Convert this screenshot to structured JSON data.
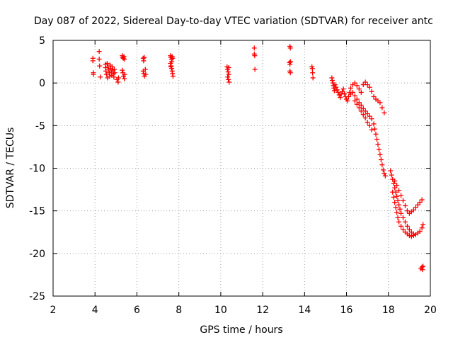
{
  "chart_data": {
    "type": "scatter",
    "title": "Day 087 of 2022, Sidereal Day-to-day VTEC variation (SDTVAR) for receiver antc",
    "xlabel": "GPS time / hours",
    "ylabel": "SDTVAR / TECUs",
    "xlim": [
      2,
      20
    ],
    "ylim": [
      -25,
      5
    ],
    "xticks": [
      "2",
      "4",
      "6",
      "8",
      "10",
      "12",
      "14",
      "16",
      "18",
      "20"
    ],
    "yticks": [
      "5",
      "0",
      "-5",
      "-10",
      "-15",
      "-20",
      "-25"
    ],
    "grid": true,
    "marker": "+",
    "color": "#ff0000",
    "series": [
      {
        "name": "SDTVAR",
        "points": [
          [
            3.9,
            2.9
          ],
          [
            3.9,
            2.6
          ],
          [
            3.92,
            1.2
          ],
          [
            3.92,
            1.0
          ],
          [
            4.2,
            3.7
          ],
          [
            4.2,
            2.8
          ],
          [
            4.22,
            2.0
          ],
          [
            4.25,
            0.7
          ],
          [
            4.5,
            2.2
          ],
          [
            4.5,
            1.8
          ],
          [
            4.52,
            1.4
          ],
          [
            4.55,
            1.0
          ],
          [
            4.58,
            2.3
          ],
          [
            4.6,
            0.6
          ],
          [
            4.62,
            1.9
          ],
          [
            4.65,
            1.6
          ],
          [
            4.68,
            1.2
          ],
          [
            4.7,
            0.8
          ],
          [
            4.72,
            2.1
          ],
          [
            4.75,
            1.7
          ],
          [
            4.78,
            1.3
          ],
          [
            4.8,
            0.9
          ],
          [
            4.82,
            1.9
          ],
          [
            4.85,
            1.5
          ],
          [
            4.88,
            1.1
          ],
          [
            4.9,
            0.7
          ],
          [
            4.92,
            1.6
          ],
          [
            4.95,
            1.2
          ],
          [
            5.05,
            0.4
          ],
          [
            5.1,
            0.1
          ],
          [
            5.12,
            0.6
          ],
          [
            5.3,
            3.2
          ],
          [
            5.32,
            3.0
          ],
          [
            5.35,
            2.9
          ],
          [
            5.38,
            3.1
          ],
          [
            5.4,
            2.8
          ],
          [
            5.3,
            1.5
          ],
          [
            5.33,
            1.2
          ],
          [
            5.36,
            0.8
          ],
          [
            5.4,
            0.5
          ],
          [
            5.42,
            1.0
          ],
          [
            6.3,
            2.9
          ],
          [
            6.32,
            2.6
          ],
          [
            6.35,
            3.0
          ],
          [
            6.3,
            1.4
          ],
          [
            6.33,
            1.1
          ],
          [
            6.36,
            0.8
          ],
          [
            6.4,
            1.6
          ],
          [
            6.42,
            1.0
          ],
          [
            7.6,
            3.2
          ],
          [
            7.62,
            3.0
          ],
          [
            7.65,
            2.8
          ],
          [
            7.68,
            3.1
          ],
          [
            7.7,
            2.9
          ],
          [
            7.6,
            2.3
          ],
          [
            7.63,
            2.0
          ],
          [
            7.66,
            1.7
          ],
          [
            7.68,
            1.4
          ],
          [
            7.7,
            1.1
          ],
          [
            7.72,
            0.8
          ],
          [
            7.62,
            1.9
          ],
          [
            7.66,
            2.5
          ],
          [
            10.3,
            1.9
          ],
          [
            10.32,
            1.6
          ],
          [
            10.35,
            1.3
          ],
          [
            10.38,
            1.0
          ],
          [
            10.33,
            0.7
          ],
          [
            10.36,
            0.4
          ],
          [
            10.4,
            0.1
          ],
          [
            10.38,
            1.8
          ],
          [
            11.6,
            4.1
          ],
          [
            11.6,
            3.4
          ],
          [
            11.62,
            3.2
          ],
          [
            11.63,
            1.6
          ],
          [
            13.3,
            4.3
          ],
          [
            13.32,
            4.1
          ],
          [
            13.28,
            2.4
          ],
          [
            13.3,
            2.2
          ],
          [
            13.33,
            2.5
          ],
          [
            13.3,
            1.4
          ],
          [
            13.32,
            1.2
          ],
          [
            14.35,
            1.9
          ],
          [
            14.37,
            1.7
          ],
          [
            14.38,
            1.2
          ],
          [
            14.4,
            0.6
          ],
          [
            15.3,
            0.6
          ],
          [
            15.32,
            0.3
          ],
          [
            15.35,
            0.0
          ],
          [
            15.38,
            -0.3
          ],
          [
            15.4,
            -0.6
          ],
          [
            15.42,
            -0.9
          ],
          [
            15.45,
            -0.2
          ],
          [
            15.5,
            -0.5
          ],
          [
            15.55,
            -0.8
          ],
          [
            15.6,
            -1.1
          ],
          [
            15.65,
            -1.4
          ],
          [
            15.7,
            -1.7
          ],
          [
            15.75,
            -1.3
          ],
          [
            15.8,
            -1.0
          ],
          [
            15.85,
            -0.7
          ],
          [
            15.9,
            -1.2
          ],
          [
            15.95,
            -1.6
          ],
          [
            16.0,
            -1.9
          ],
          [
            16.05,
            -2.1
          ],
          [
            16.1,
            -1.6
          ],
          [
            16.15,
            -1.1
          ],
          [
            16.2,
            -0.6
          ],
          [
            16.3,
            -0.2
          ],
          [
            16.4,
            0.0
          ],
          [
            16.5,
            -0.3
          ],
          [
            16.6,
            -0.7
          ],
          [
            16.7,
            -1.1
          ],
          [
            16.8,
            -0.2
          ],
          [
            16.9,
            0.1
          ],
          [
            17.0,
            -0.2
          ],
          [
            17.1,
            -0.5
          ],
          [
            17.2,
            -1.0
          ],
          [
            17.3,
            -1.6
          ],
          [
            17.4,
            -1.9
          ],
          [
            17.5,
            -2.1
          ],
          [
            17.6,
            -2.3
          ],
          [
            17.7,
            -2.9
          ],
          [
            17.8,
            -3.5
          ],
          [
            16.2,
            -1.3
          ],
          [
            16.3,
            -1.1
          ],
          [
            16.4,
            -1.5
          ],
          [
            16.5,
            -1.9
          ],
          [
            16.6,
            -2.3
          ],
          [
            16.7,
            -2.6
          ],
          [
            16.8,
            -3.0
          ],
          [
            16.9,
            -3.3
          ],
          [
            17.0,
            -3.6
          ],
          [
            17.1,
            -3.9
          ],
          [
            17.2,
            -4.2
          ],
          [
            17.3,
            -4.8
          ],
          [
            17.35,
            -5.4
          ],
          [
            17.4,
            -6.0
          ],
          [
            17.45,
            -6.6
          ],
          [
            17.5,
            -7.2
          ],
          [
            17.55,
            -7.8
          ],
          [
            17.6,
            -8.4
          ],
          [
            17.65,
            -9.0
          ],
          [
            17.7,
            -9.6
          ],
          [
            17.75,
            -10.2
          ],
          [
            17.8,
            -10.6
          ],
          [
            17.85,
            -10.9
          ],
          [
            16.4,
            -2.1
          ],
          [
            16.5,
            -2.5
          ],
          [
            16.6,
            -2.9
          ],
          [
            16.7,
            -3.3
          ],
          [
            16.8,
            -3.7
          ],
          [
            16.9,
            -4.1
          ],
          [
            17.0,
            -4.6
          ],
          [
            17.1,
            -5.0
          ],
          [
            17.2,
            -5.5
          ],
          [
            18.1,
            -10.3
          ],
          [
            18.15,
            -10.8
          ],
          [
            18.2,
            -11.3
          ],
          [
            18.25,
            -11.8
          ],
          [
            18.3,
            -12.3
          ],
          [
            18.35,
            -12.8
          ],
          [
            18.4,
            -13.3
          ],
          [
            18.45,
            -13.8
          ],
          [
            18.5,
            -14.3
          ],
          [
            18.55,
            -14.8
          ],
          [
            18.6,
            -15.3
          ],
          [
            18.7,
            -15.8
          ],
          [
            18.8,
            -16.3
          ],
          [
            18.9,
            -16.8
          ],
          [
            19.0,
            -17.2
          ],
          [
            19.1,
            -17.5
          ],
          [
            19.2,
            -17.7
          ],
          [
            19.3,
            -17.8
          ],
          [
            19.4,
            -17.6
          ],
          [
            19.5,
            -17.4
          ],
          [
            19.6,
            -17.0
          ],
          [
            19.65,
            -16.6
          ],
          [
            18.2,
            -12.8
          ],
          [
            18.25,
            -13.4
          ],
          [
            18.3,
            -14.0
          ],
          [
            18.35,
            -14.6
          ],
          [
            18.4,
            -15.2
          ],
          [
            18.45,
            -15.8
          ],
          [
            18.5,
            -16.3
          ],
          [
            18.6,
            -16.8
          ],
          [
            18.7,
            -17.2
          ],
          [
            18.8,
            -17.5
          ],
          [
            18.9,
            -17.7
          ],
          [
            19.0,
            -17.9
          ],
          [
            19.1,
            -18.0
          ],
          [
            19.2,
            -17.9
          ],
          [
            18.3,
            -11.5
          ],
          [
            18.4,
            -12.0
          ],
          [
            18.5,
            -12.6
          ],
          [
            18.6,
            -13.2
          ],
          [
            18.7,
            -13.8
          ],
          [
            18.8,
            -14.4
          ],
          [
            18.9,
            -15.0
          ],
          [
            19.0,
            -15.3
          ],
          [
            19.1,
            -15.1
          ],
          [
            19.2,
            -14.9
          ],
          [
            19.3,
            -14.6
          ],
          [
            19.4,
            -14.3
          ],
          [
            19.5,
            -14.0
          ],
          [
            19.6,
            -13.7
          ],
          [
            19.55,
            -21.8
          ],
          [
            19.6,
            -21.6
          ],
          [
            19.62,
            -21.9
          ],
          [
            19.65,
            -21.5
          ]
        ]
      }
    ]
  }
}
